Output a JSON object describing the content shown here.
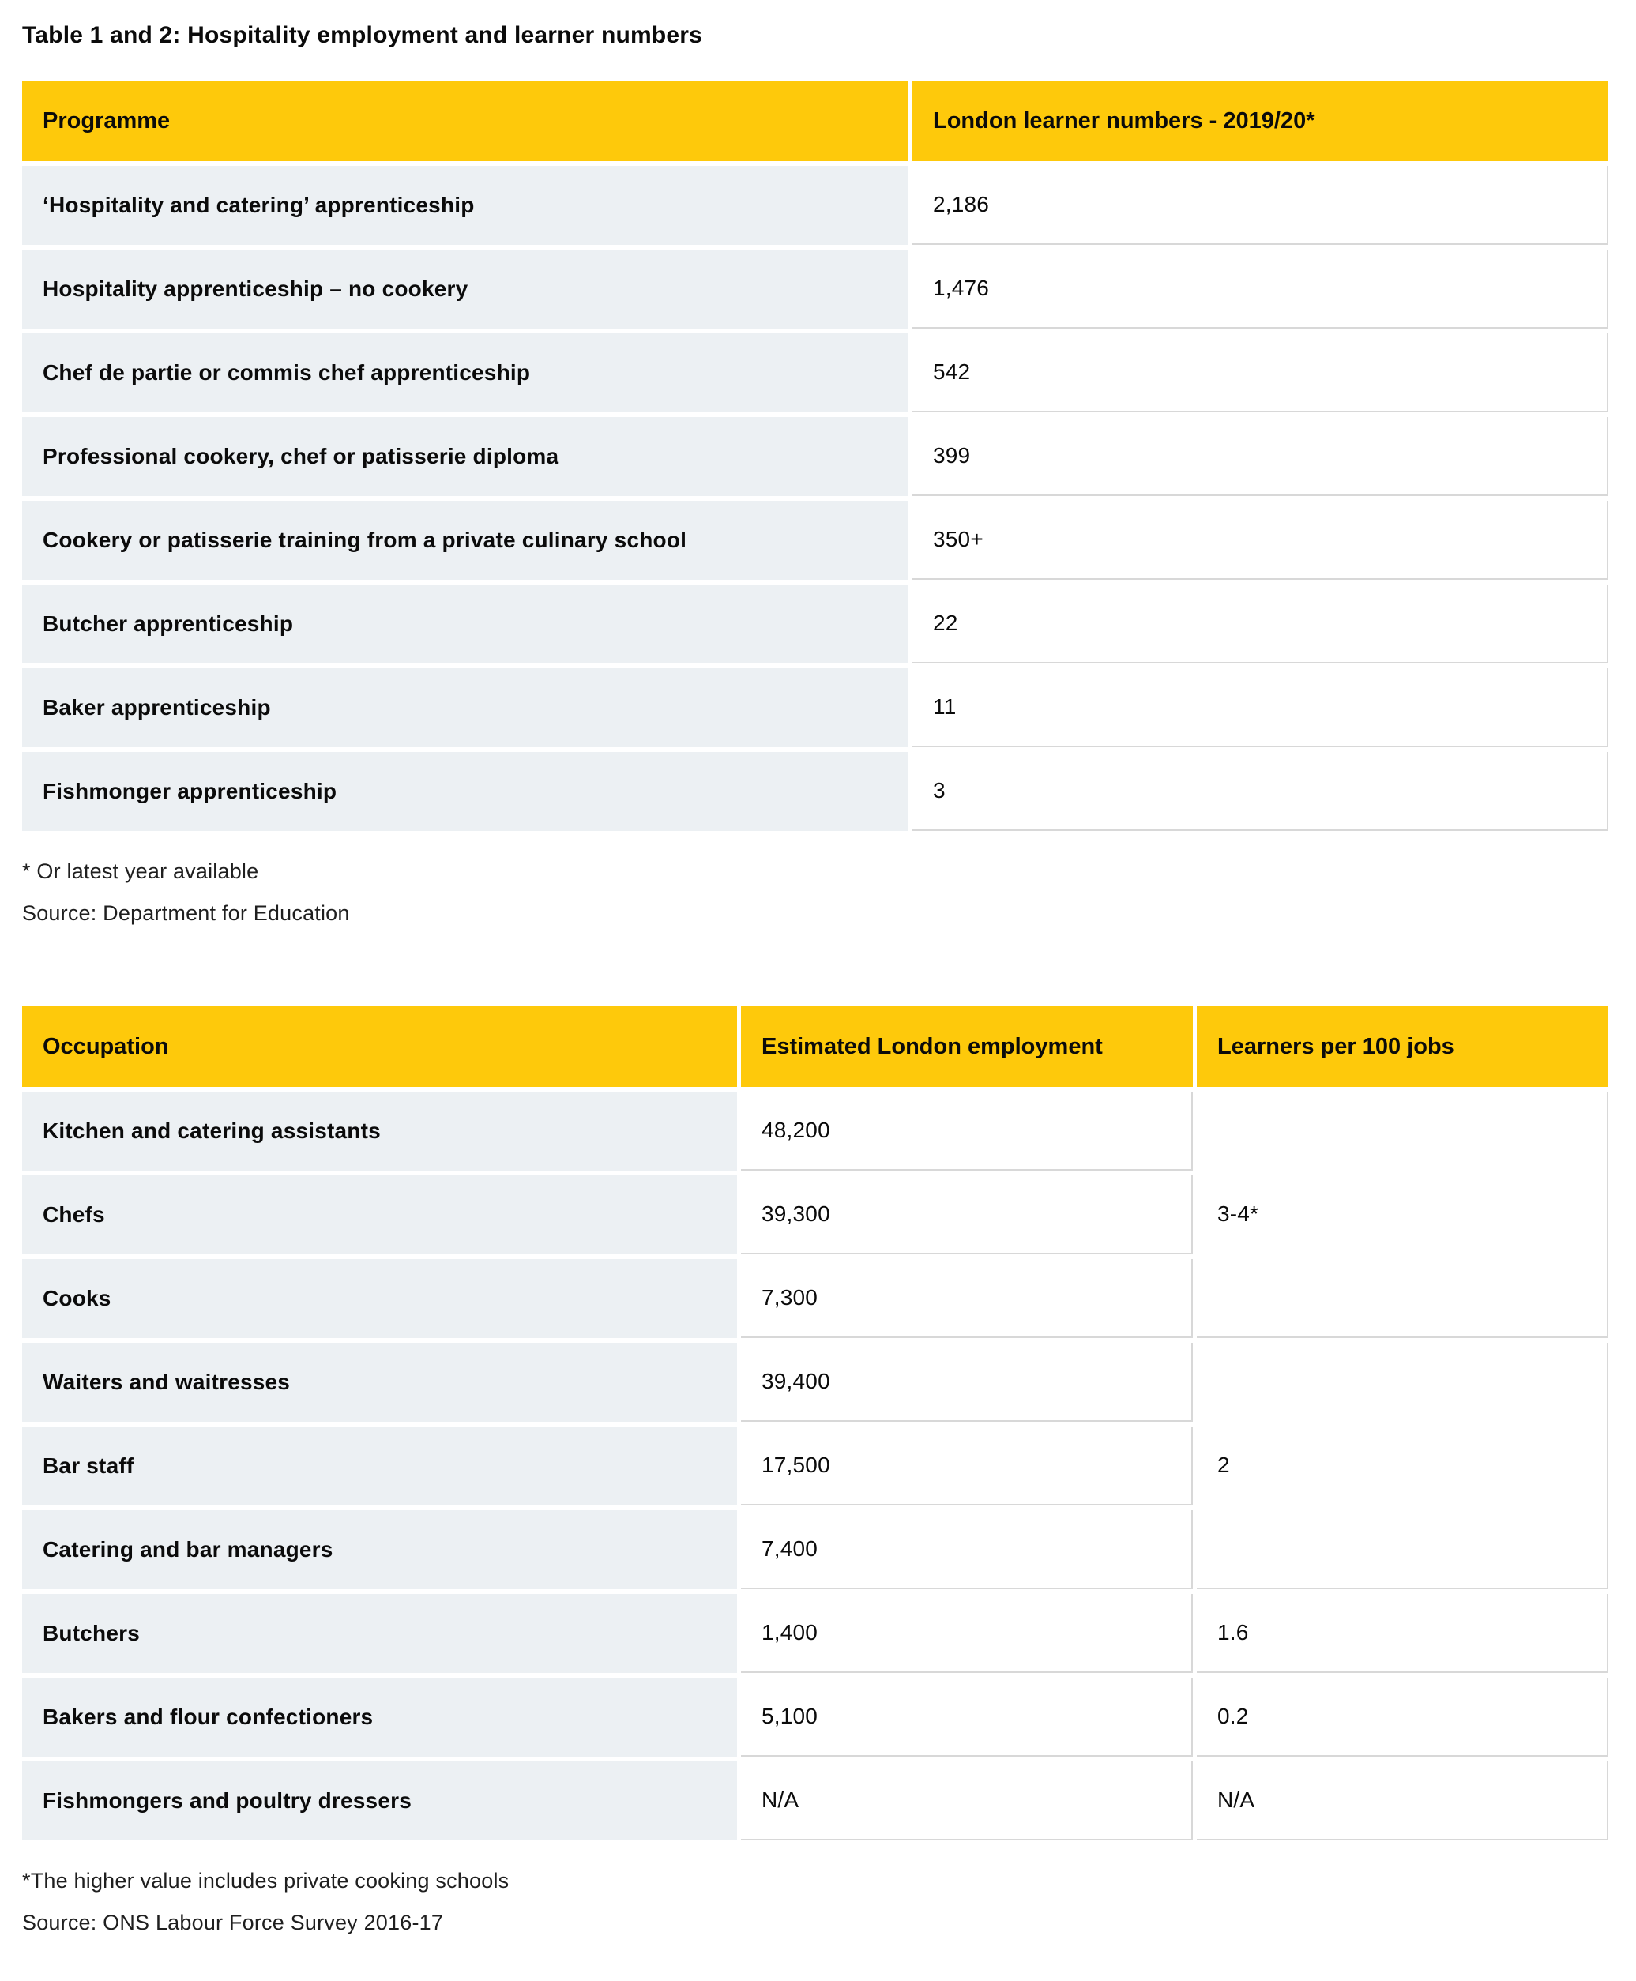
{
  "title": "Table 1 and 2: Hospitality employment and learner numbers",
  "colors": {
    "header_yellow": "#fec90b",
    "row_gray": "#ecf0f3",
    "border_gray": "#d8d8d8"
  },
  "table1": {
    "columns": [
      "Programme",
      "London learner numbers - 2019/20*"
    ],
    "rows": [
      {
        "programme": "‘Hospitality and catering’ apprenticeship",
        "learners_2019_20": "2,186"
      },
      {
        "programme": "Hospitality apprenticeship – no cookery",
        "learners_2019_20": "1,476"
      },
      {
        "programme": "Chef de partie or commis chef apprenticeship",
        "learners_2019_20": "542"
      },
      {
        "programme": "Professional cookery, chef or patisserie diploma",
        "learners_2019_20": "399"
      },
      {
        "programme": "Cookery or patisserie training from a private culinary school",
        "learners_2019_20": "350+"
      },
      {
        "programme": "Butcher apprenticeship",
        "learners_2019_20": "22"
      },
      {
        "programme": "Baker apprenticeship",
        "learners_2019_20": "11"
      },
      {
        "programme": "Fishmonger apprenticeship",
        "learners_2019_20": "3"
      }
    ],
    "footnotes": [
      "* Or latest year available",
      "Source: Department for Education"
    ]
  },
  "table2": {
    "columns": [
      "Occupation",
      "Estimated London employment",
      "Learners per 100 jobs"
    ],
    "rows": [
      {
        "occupation": "Kitchen and catering assistants",
        "employment": "48,200",
        "learners_per_100_jobs": "3-4*",
        "rowspan": 3
      },
      {
        "occupation": "Chefs",
        "employment": "39,300"
      },
      {
        "occupation": "Cooks",
        "employment": "7,300"
      },
      {
        "occupation": "Waiters and waitresses",
        "employment": "39,400",
        "learners_per_100_jobs": "2",
        "rowspan": 3
      },
      {
        "occupation": "Bar staff",
        "employment": "17,500"
      },
      {
        "occupation": "Catering and bar managers",
        "employment": "7,400"
      },
      {
        "occupation": "Butchers",
        "employment": "1,400",
        "learners_per_100_jobs": "1.6",
        "rowspan": 1
      },
      {
        "occupation": "Bakers and flour confectioners",
        "employment": "5,100",
        "learners_per_100_jobs": "0.2",
        "rowspan": 1
      },
      {
        "occupation": "Fishmongers and poultry dressers",
        "employment": "N/A",
        "learners_per_100_jobs": "N/A",
        "rowspan": 1
      }
    ],
    "footnotes": [
      "*The higher value includes private cooking schools",
      "Source: ONS Labour Force Survey 2016-17"
    ]
  }
}
